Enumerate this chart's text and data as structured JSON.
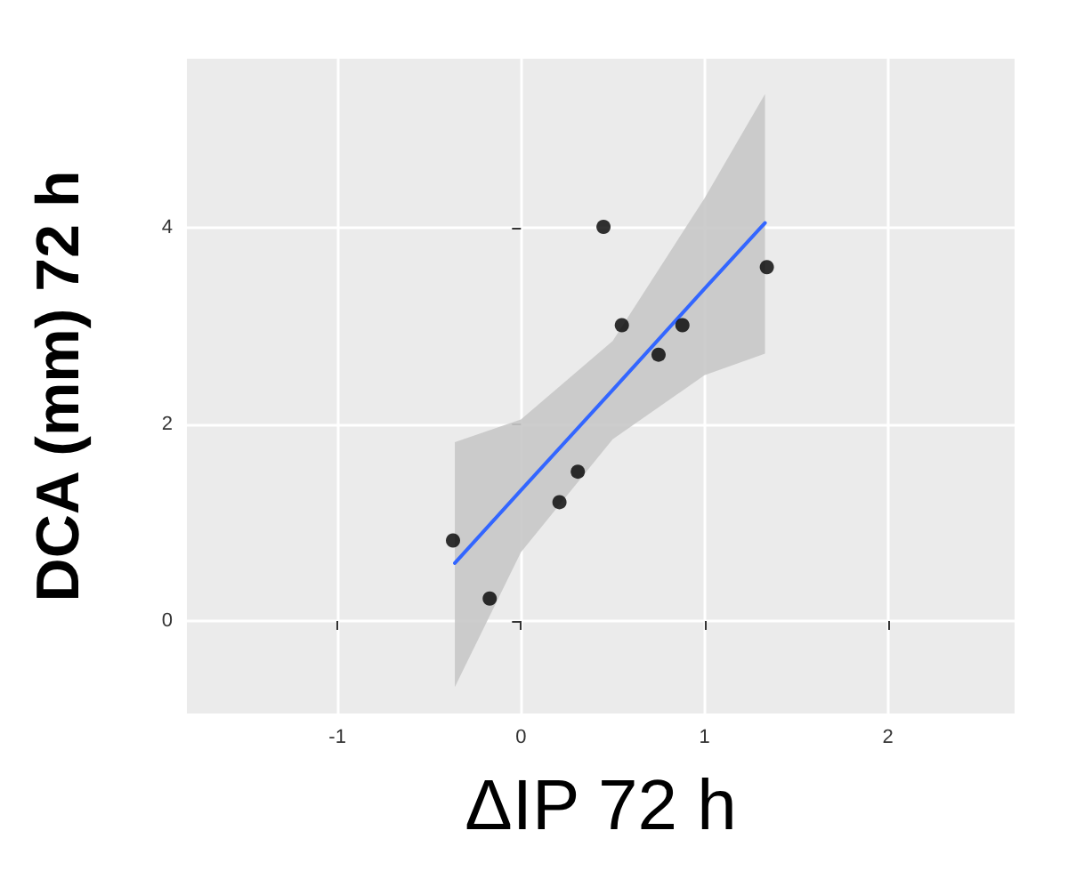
{
  "chart_data": {
    "type": "scatter",
    "xlabel": "ΔIP 72 h",
    "ylabel": "DCA (mm) 72 h",
    "x": [
      -0.37,
      -0.17,
      0.21,
      0.31,
      0.45,
      0.55,
      0.75,
      0.88,
      1.34
    ],
    "series": [
      {
        "color": "#000000",
        "marker": "circle",
        "values": [
          0.82,
          0.23,
          1.21,
          1.52,
          4.01,
          3.01,
          2.71,
          3.01,
          3.6
        ]
      },
      {
        "type": "line",
        "marker": "none",
        "color": "#3366ff",
        "x": [
          -0.36,
          0,
          0.5,
          1,
          1.33
        ],
        "values": [
          0.59,
          1.33,
          2.35,
          3.38,
          4.05
        ],
        "lower": [
          -0.67,
          0.7,
          1.85,
          2.5,
          2.72
        ],
        "upper": [
          1.82,
          2.05,
          2.85,
          4.3,
          5.36
        ]
      }
    ],
    "xlim": [
      -1.82,
      2.69
    ],
    "ylim": [
      -0.94,
      5.72
    ],
    "xticks": [
      -1,
      0,
      1,
      2
    ],
    "yticks": [
      0,
      2,
      4
    ],
    "grid": true
  }
}
